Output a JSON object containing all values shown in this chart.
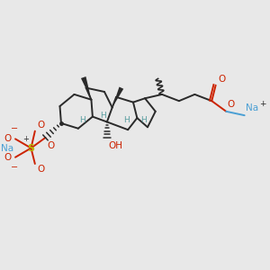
{
  "bg_color": "#e8e8e8",
  "bond_color": "#2a2a2a",
  "H_color": "#5a9ea0",
  "O_color": "#cc2200",
  "S_color": "#b8b800",
  "Na_color": "#4a9fd4",
  "line_width": 1.4,
  "figsize": [
    3.0,
    3.0
  ],
  "dpi": 100,
  "xlim": [
    0,
    10
  ],
  "ylim": [
    0,
    10
  ]
}
